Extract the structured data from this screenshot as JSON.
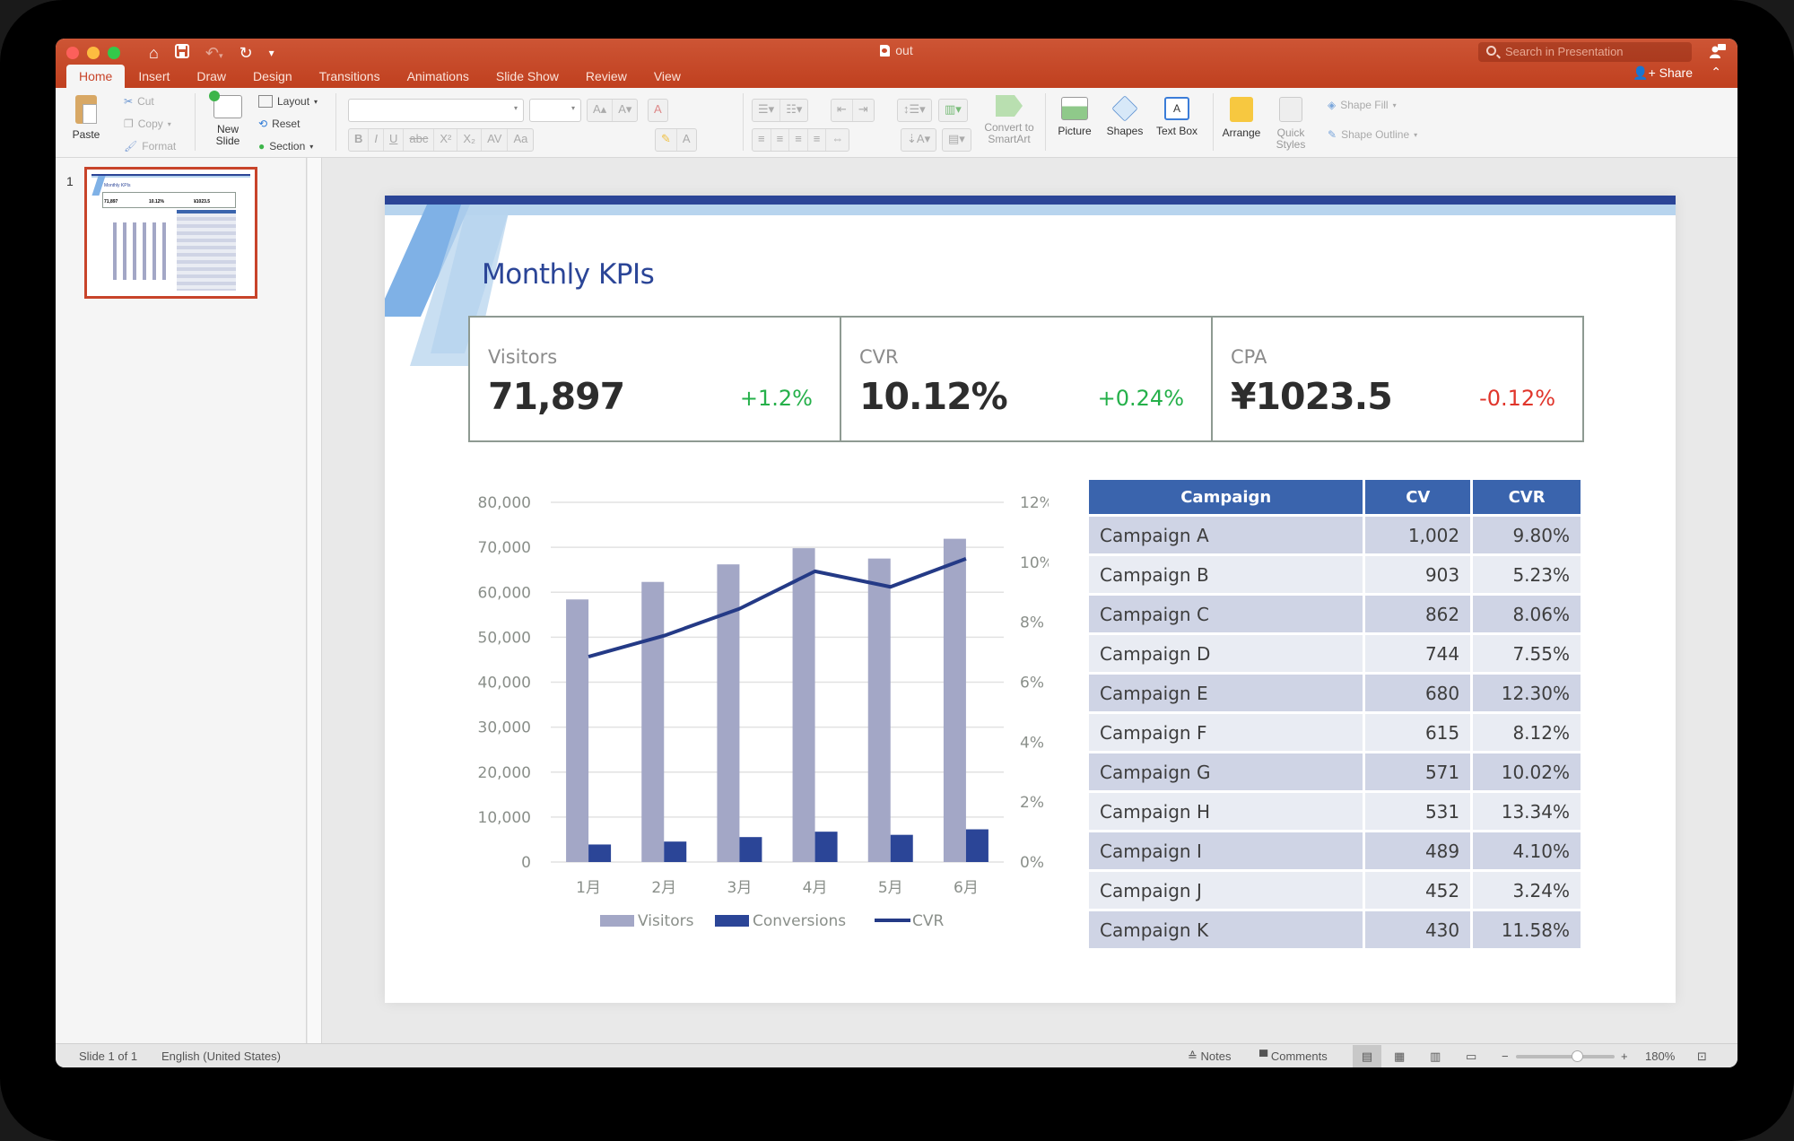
{
  "window": {
    "doc_title": "out",
    "search_placeholder": "Search in Presentation",
    "share_label": "Share",
    "tabs": [
      "Home",
      "Insert",
      "Draw",
      "Design",
      "Transitions",
      "Animations",
      "Slide Show",
      "Review",
      "View"
    ],
    "active_tab": "Home"
  },
  "ribbon": {
    "paste": "Paste",
    "cut": "Cut",
    "copy": "Copy",
    "format": "Format",
    "new_slide": "New Slide",
    "layout": "Layout",
    "reset": "Reset",
    "section": "Section",
    "convert_smartart": "Convert to SmartArt",
    "picture": "Picture",
    "shapes": "Shapes",
    "text_box": "Text Box",
    "arrange": "Arrange",
    "quick_styles": "Quick Styles",
    "shape_fill": "Shape Fill",
    "shape_outline": "Shape Outline",
    "font_buttons": [
      "B",
      "I",
      "U",
      "abc",
      "X²",
      "X₂",
      "AV",
      "Aa"
    ]
  },
  "thumbnails": [
    {
      "number": "1",
      "selected": true
    }
  ],
  "slide": {
    "title": "Monthly KPIs",
    "kpis": [
      {
        "label": "Visitors",
        "value": "71,897",
        "delta": "+1.2%",
        "trend": "up"
      },
      {
        "label": "CVR",
        "value": "10.12%",
        "delta": "+0.24%",
        "trend": "up"
      },
      {
        "label": "CPA",
        "value": "¥1023.5",
        "delta": "-0.12%",
        "trend": "down"
      }
    ],
    "table": {
      "headers": [
        "Campaign",
        "CV",
        "CVR"
      ],
      "rows": [
        [
          "Campaign A",
          "1,002",
          "9.80%"
        ],
        [
          "Campaign B",
          "903",
          "5.23%"
        ],
        [
          "Campaign C",
          "862",
          "8.06%"
        ],
        [
          "Campaign D",
          "744",
          "7.55%"
        ],
        [
          "Campaign E",
          "680",
          "12.30%"
        ],
        [
          "Campaign F",
          "615",
          "8.12%"
        ],
        [
          "Campaign G",
          "571",
          "10.02%"
        ],
        [
          "Campaign H",
          "531",
          "13.34%"
        ],
        [
          "Campaign I",
          "489",
          "4.10%"
        ],
        [
          "Campaign J",
          "452",
          "3.24%"
        ],
        [
          "Campaign K",
          "430",
          "11.58%"
        ]
      ]
    }
  },
  "chart_data": {
    "type": "bar",
    "title": "",
    "categories": [
      "1月",
      "2月",
      "3月",
      "4月",
      "5月",
      "6月"
    ],
    "series": [
      {
        "name": "Visitors",
        "type": "bar",
        "axis": "left",
        "color": "#a3a7c6",
        "values": [
          58400,
          62300,
          66200,
          69800,
          67500,
          71897
        ]
      },
      {
        "name": "Conversions",
        "type": "bar",
        "axis": "left",
        "color": "#2b4597",
        "values": [
          3900,
          4550,
          5550,
          6750,
          6050,
          7276
        ]
      },
      {
        "name": "CVR",
        "type": "line",
        "axis": "right",
        "color": "#243a86",
        "values": [
          6.85,
          7.55,
          8.45,
          9.7,
          9.18,
          10.12
        ]
      }
    ],
    "y_left": {
      "min": 0,
      "max": 80000,
      "ticks": [
        "0",
        "10,000",
        "20,000",
        "30,000",
        "40,000",
        "50,000",
        "60,000",
        "70,000",
        "80,000"
      ]
    },
    "y_right": {
      "min": 0,
      "max": 12,
      "ticks": [
        "0%",
        "2%",
        "4%",
        "6%",
        "8%",
        "10%",
        "12%"
      ]
    },
    "xlabel": "",
    "ylabel": "",
    "grid": true,
    "legend_position": "bottom"
  },
  "status": {
    "slide_info": "Slide 1 of 1",
    "language": "English (United States)",
    "notes": "Notes",
    "comments": "Comments",
    "zoom": "180%"
  }
}
